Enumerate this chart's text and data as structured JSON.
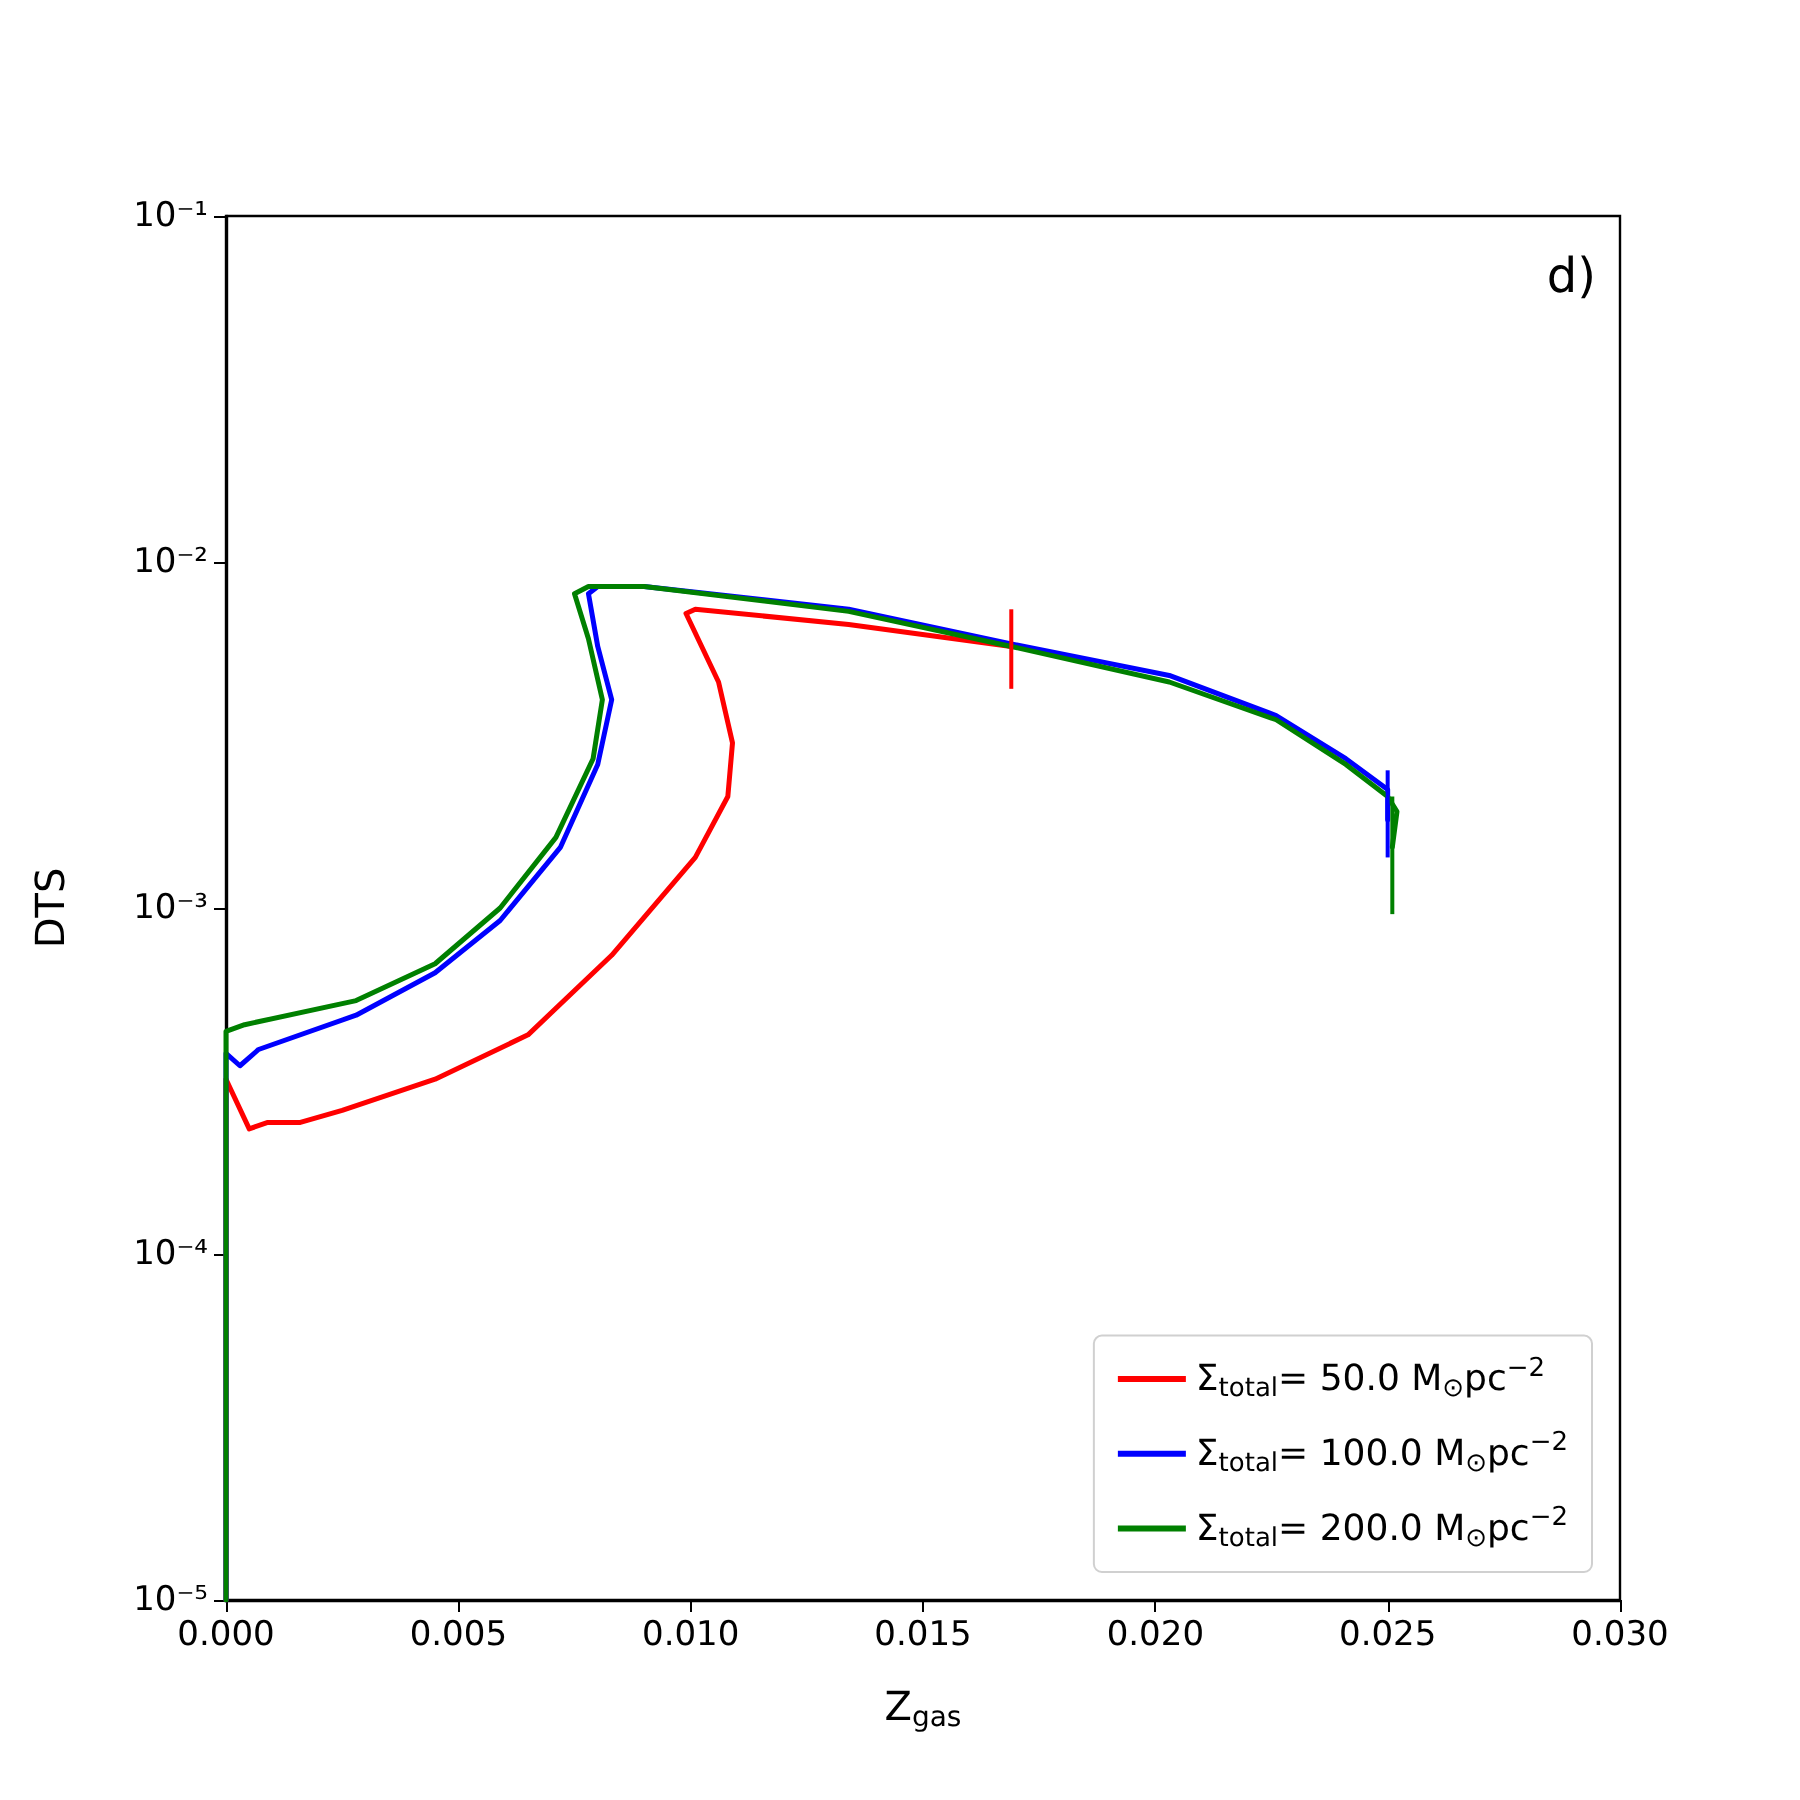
{
  "chart_data": {
    "type": "line",
    "xlabel": "Z$_{gas}$",
    "ylabel": "DTS",
    "annotations": [
      "d)"
    ],
    "log": "y",
    "grid": false,
    "legend": "bottom right",
    "marker": "none",
    "line_style": "solid",
    "xlim": [
      0,
      0.03
    ],
    "ylim": [
      1e-05,
      0.1
    ],
    "xticks": [
      {
        "value": 0,
        "label": "0.000"
      },
      {
        "value": 0.005,
        "label": "0.005"
      },
      {
        "value": 0.01,
        "label": "0.010"
      },
      {
        "value": 0.015,
        "label": "0.015"
      },
      {
        "value": 0.02,
        "label": "0.020"
      },
      {
        "value": 0.025,
        "label": "0.025"
      },
      {
        "value": 0.03,
        "label": "0.030"
      }
    ],
    "yticks": [
      {
        "value": 1e-05,
        "label": "10⁻⁵"
      },
      {
        "value": 0.0001,
        "label": "10⁻⁴"
      },
      {
        "value": 0.001,
        "label": "10⁻³"
      },
      {
        "value": 0.01,
        "label": "10⁻²"
      },
      {
        "value": 0.1,
        "label": "10⁻¹"
      }
    ],
    "series": [
      {
        "name": "Σ$_{total}$= 50.0 M$_{⊙}$pc$^{−2}$",
        "color": "#ff0000",
        "x": [
          0,
          0,
          0.0005,
          0.0009,
          0.0016,
          0.0025,
          0.0045,
          0.0065,
          0.0083,
          0.0101,
          0.0108,
          0.0109,
          0.0106,
          0.0099,
          0.0101,
          0.0134,
          0.0169
        ],
        "values": [
          1e-05,
          0.00032,
          0.00023,
          0.00024,
          0.00024,
          0.00026,
          0.00032,
          0.00043,
          0.00073,
          0.0014,
          0.0021,
          0.003,
          0.0045,
          0.0071,
          0.0073,
          0.0066,
          0.0057
        ],
        "errors": [
          null,
          null,
          null,
          null,
          null,
          null,
          null,
          null,
          null,
          null,
          null,
          null,
          null,
          null,
          null,
          null,
          [
            0.0043,
            0.0073
          ]
        ]
      },
      {
        "name": "Σ$_{total}$= 100.0 M$_{⊙}$pc$^{−2}$",
        "color": "#0000ff",
        "x": [
          0,
          0,
          0.0003,
          0.0007,
          0.0028,
          0.0045,
          0.0059,
          0.0072,
          0.008,
          0.0083,
          0.008,
          0.0078,
          0.008,
          0.009,
          0.0134,
          0.0169,
          0.0203,
          0.0226,
          0.0241,
          0.025,
          0.025
        ],
        "values": [
          1e-05,
          0.00038,
          0.00035,
          0.00039,
          0.00049,
          0.00065,
          0.00092,
          0.0015,
          0.0026,
          0.004,
          0.0057,
          0.0081,
          0.0085,
          0.0085,
          0.0073,
          0.0058,
          0.0047,
          0.0036,
          0.0027,
          0.0022,
          0.0018
        ],
        "errors": [
          null,
          null,
          null,
          null,
          null,
          null,
          null,
          null,
          null,
          null,
          null,
          null,
          null,
          null,
          null,
          null,
          null,
          null,
          null,
          null,
          [
            0.0014,
            0.0025
          ]
        ]
      },
      {
        "name": "Σ$_{total}$= 200.0 M$_{⊙}$pc$^{−2}$",
        "color": "#008000",
        "x": [
          0,
          0,
          0.0004,
          0.0028,
          0.0045,
          0.0059,
          0.0071,
          0.0079,
          0.0081,
          0.0078,
          0.0075,
          0.0078,
          0.009,
          0.0134,
          0.0169,
          0.0203,
          0.0226,
          0.0241,
          0.025,
          0.0252,
          0.0251
        ],
        "values": [
          1e-05,
          0.00044,
          0.00046,
          0.00054,
          0.00069,
          0.001,
          0.0016,
          0.0027,
          0.004,
          0.006,
          0.0081,
          0.0085,
          0.0085,
          0.0072,
          0.0057,
          0.0045,
          0.0035,
          0.0026,
          0.0021,
          0.0019,
          0.0015
        ],
        "errors": [
          null,
          null,
          null,
          null,
          null,
          null,
          null,
          null,
          null,
          null,
          null,
          null,
          null,
          null,
          null,
          null,
          null,
          null,
          null,
          null,
          [
            0.00096,
            0.0021
          ]
        ]
      }
    ]
  }
}
